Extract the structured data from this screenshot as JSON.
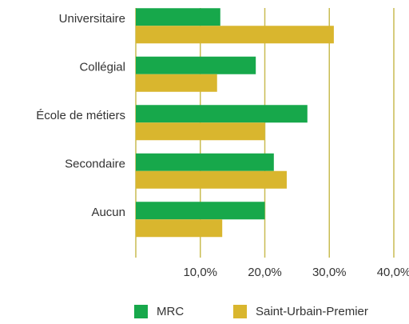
{
  "chart_data": {
    "type": "hbar",
    "categories": [
      "Universitaire",
      "Collégial",
      "École de métiers",
      "Secondaire",
      "Aucun"
    ],
    "series": [
      {
        "name": "MRC",
        "color": "#17a84b",
        "values": [
          13.1,
          18.6,
          26.6,
          21.4,
          20.0
        ]
      },
      {
        "name": "Saint-Urbain-Premier",
        "color": "#d9b62e",
        "values": [
          30.7,
          12.6,
          20.0,
          23.4,
          13.4
        ]
      }
    ],
    "xlim": [
      0,
      40
    ],
    "xticks": [
      {
        "value": 10,
        "label": "10,0%"
      },
      {
        "value": 20,
        "label": "20,0%"
      },
      {
        "value": 30,
        "label": "30,0%"
      },
      {
        "value": 40,
        "label": "40,0%"
      }
    ],
    "grid": true
  }
}
